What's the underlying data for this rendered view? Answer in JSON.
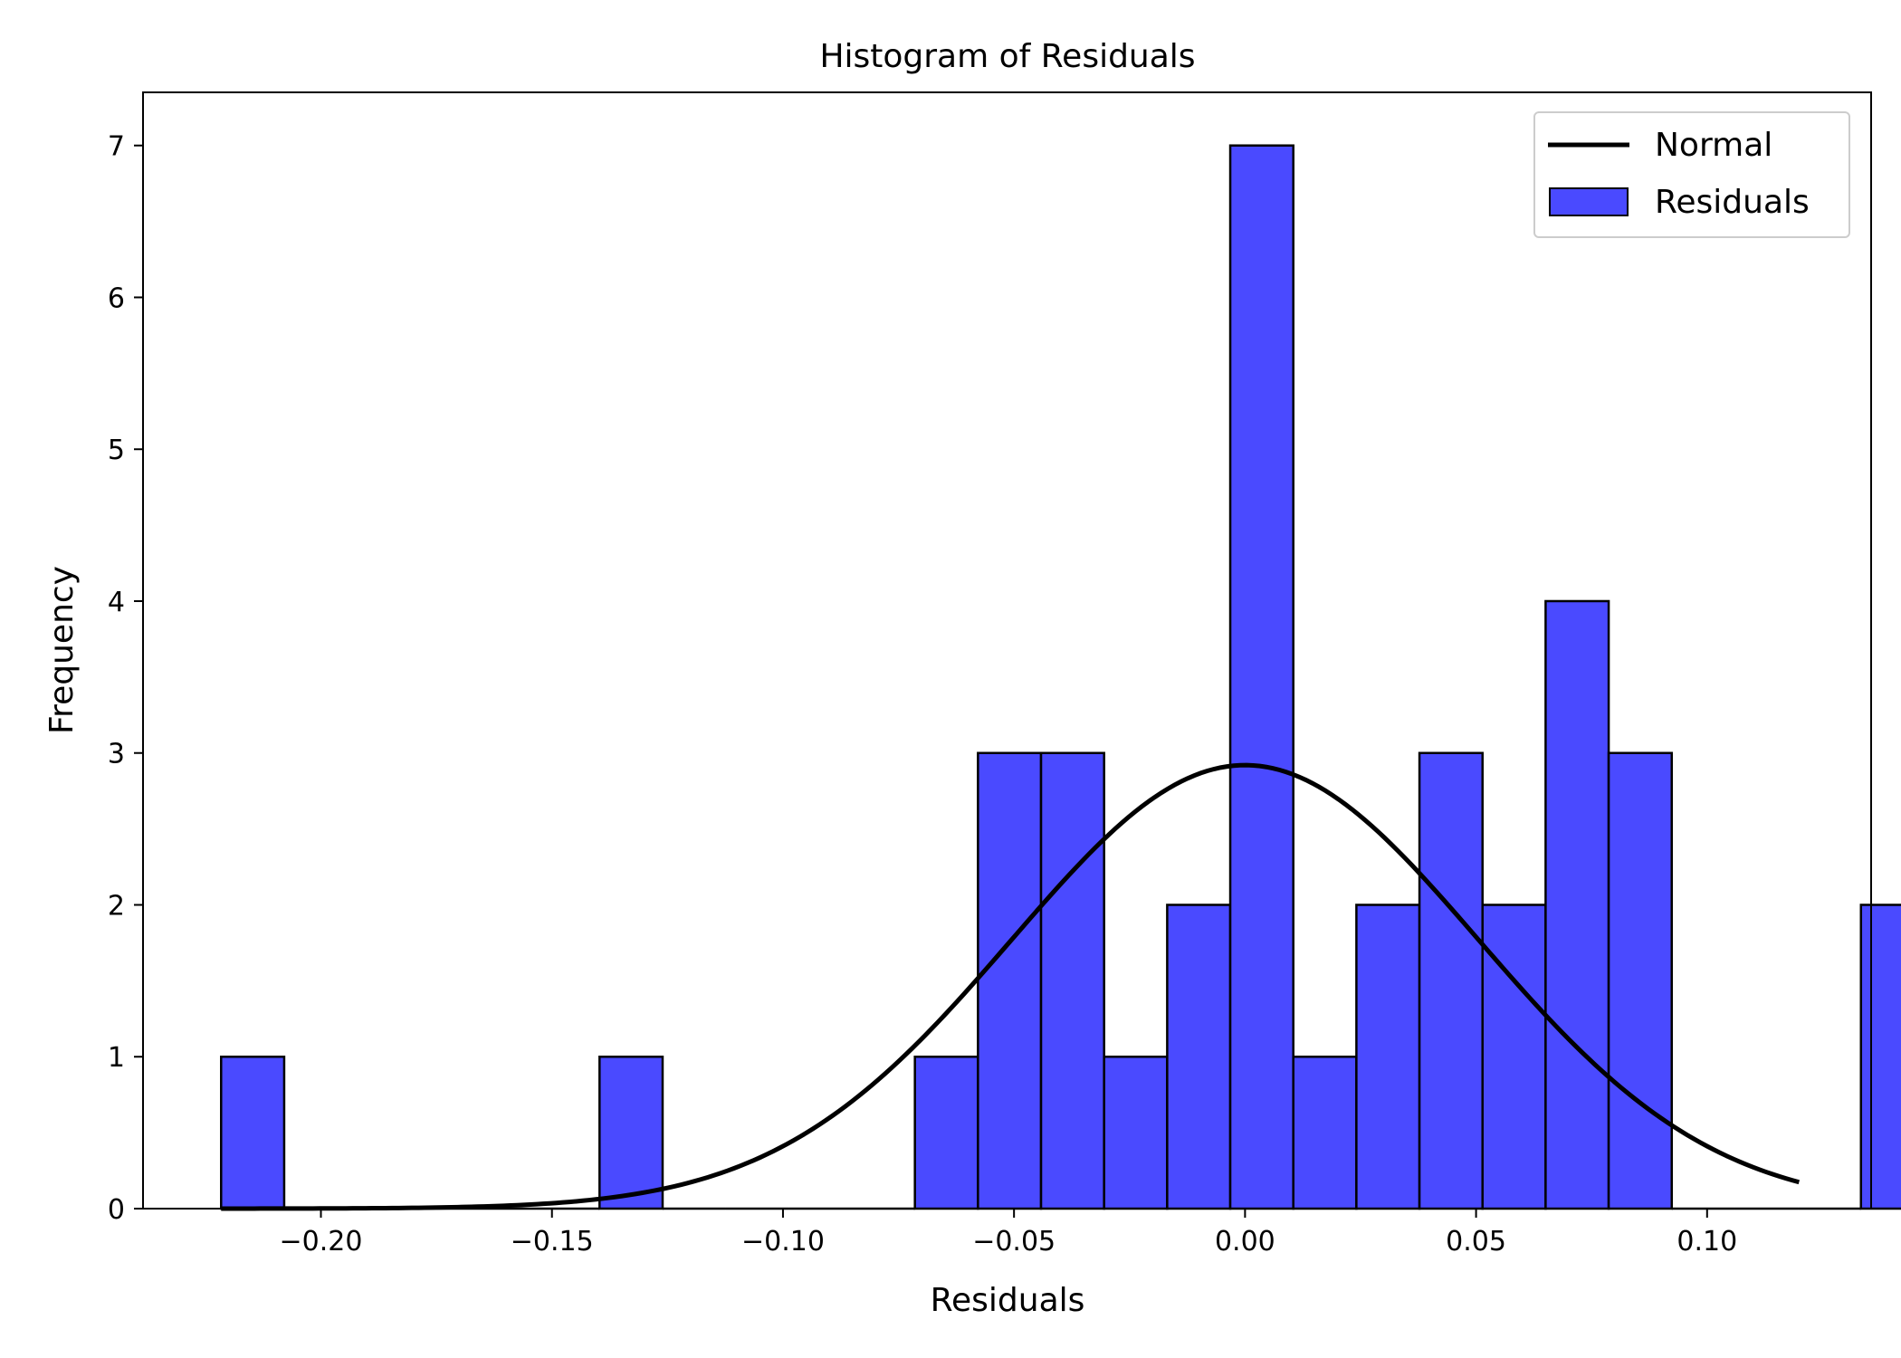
{
  "chart_data": {
    "type": "bar",
    "title": "Histogram of Residuals",
    "xlabel": "Residuals",
    "ylabel": "Frequency",
    "xlim": [
      -0.2385,
      0.1355
    ],
    "ylim": [
      0,
      7.35
    ],
    "xticks": [
      -0.2,
      -0.15,
      -0.1,
      -0.05,
      0.0,
      0.05,
      0.1
    ],
    "xtick_labels": [
      "−0.20",
      "−0.15",
      "−0.10",
      "−0.05",
      "0.00",
      "0.05",
      "0.10"
    ],
    "yticks": [
      0,
      1,
      2,
      3,
      4,
      5,
      6,
      7
    ],
    "ytick_labels": [
      "0",
      "1",
      "2",
      "3",
      "4",
      "5",
      "6",
      "7"
    ],
    "grid": false,
    "legend_position": "top-right",
    "colors": {
      "bar_fill": "#4a4aff",
      "bar_edge": "#000000",
      "curve": "#000000"
    },
    "series": [
      {
        "name": "Residuals",
        "kind": "histogram",
        "bin_start": -0.2216,
        "bin_width": 0.01365,
        "counts": [
          1,
          0,
          0,
          0,
          0,
          0,
          1,
          0,
          0,
          0,
          0,
          1,
          3,
          3,
          1,
          2,
          7,
          1,
          2,
          3,
          2,
          4,
          3,
          0,
          0,
          0,
          2
        ]
      },
      {
        "name": "Normal",
        "kind": "normal_curve",
        "mean": 0.0,
        "sd": 0.0505,
        "peak": 2.92,
        "x_range": [
          -0.2216,
          0.1199
        ]
      }
    ]
  }
}
